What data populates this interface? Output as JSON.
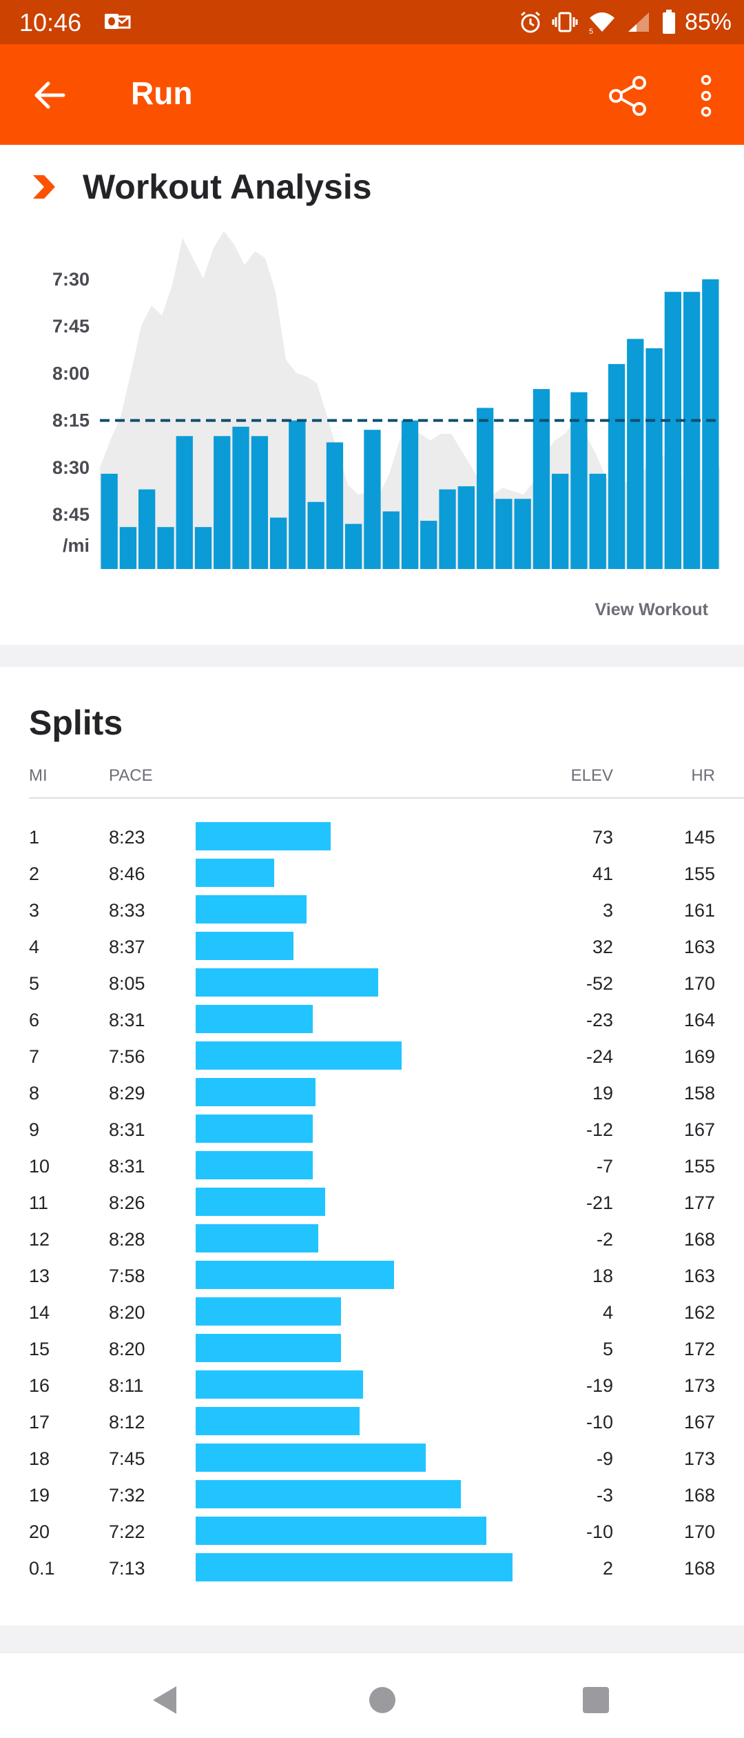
{
  "status_bar": {
    "time": "10:46",
    "battery": "85%",
    "icons": [
      "outlook-notification-icon",
      "alarm-icon",
      "vibrate-icon",
      "wifi-icon",
      "cell-signal-icon",
      "battery-icon"
    ]
  },
  "app_bar": {
    "title": "Run",
    "icons": [
      "back-arrow-icon",
      "share-icon",
      "more-vert-icon"
    ]
  },
  "workout_analysis": {
    "title": "Workout Analysis",
    "view_workout_label": "View Workout",
    "colors": {
      "bar": "#0b9bd6",
      "bar_dark": "#0a8bc4",
      "elevation": "#ececec",
      "average_line": "#0c4f70",
      "brand": "#fc5200"
    },
    "chart_data": {
      "type": "bar",
      "y_tick_labels": [
        "7:30",
        "7:45",
        "8:00",
        "8:15",
        "8:30",
        "8:45"
      ],
      "y_unit_label": "/mi",
      "y_ticks_seconds": [
        450,
        465,
        480,
        495,
        510,
        525
      ],
      "ylim_seconds": [
        440,
        540
      ],
      "y_inverted": true,
      "average_pace_seconds": 495,
      "series": [
        {
          "values": [
            512,
            529,
            517,
            529,
            500,
            529,
            500,
            497,
            500,
            526,
            495,
            521,
            502,
            528,
            498,
            524,
            495,
            527,
            517,
            516,
            491,
            520,
            520,
            485,
            512,
            486,
            512,
            477,
            469,
            472,
            454,
            454,
            450
          ]
        }
      ],
      "elevation_profile_relative": [
        0.3,
        0.38,
        0.45,
        0.58,
        0.72,
        0.78,
        0.75,
        0.84,
        0.98,
        0.92,
        0.86,
        0.95,
        1.0,
        0.96,
        0.9,
        0.94,
        0.92,
        0.82,
        0.62,
        0.58,
        0.57,
        0.55,
        0.45,
        0.35,
        0.25,
        0.22,
        0.23,
        0.22,
        0.28,
        0.38,
        0.42,
        0.4,
        0.38,
        0.4,
        0.4,
        0.35,
        0.3,
        0.25,
        0.22,
        0.24,
        0.23,
        0.22,
        0.26,
        0.34,
        0.38,
        0.4,
        0.44,
        0.4,
        0.34,
        0.27,
        0.24,
        0.26,
        0.28,
        0.3,
        0.32,
        0.35,
        0.28,
        0.24,
        0.26,
        0.28,
        0.3
      ]
    }
  },
  "splits": {
    "title": "Splits",
    "headers": {
      "mi": "MI",
      "pace": "PACE",
      "elev": "ELEV",
      "hr": "HR"
    },
    "bar_color": "#22c4ff",
    "rows": [
      {
        "mi": "1",
        "pace": "8:23",
        "elev": "73",
        "hr": "145",
        "bar_fraction": 0.427
      },
      {
        "mi": "2",
        "pace": "8:46",
        "elev": "41",
        "hr": "155",
        "bar_fraction": 0.248
      },
      {
        "mi": "3",
        "pace": "8:33",
        "elev": "3",
        "hr": "161",
        "bar_fraction": 0.35
      },
      {
        "mi": "4",
        "pace": "8:37",
        "elev": "32",
        "hr": "163",
        "bar_fraction": 0.308
      },
      {
        "mi": "5",
        "pace": "8:05",
        "elev": "-52",
        "hr": "170",
        "bar_fraction": 0.577
      },
      {
        "mi": "6",
        "pace": "8:31",
        "elev": "-23",
        "hr": "164",
        "bar_fraction": 0.37
      },
      {
        "mi": "7",
        "pace": "7:56",
        "elev": "-24",
        "hr": "169",
        "bar_fraction": 0.65
      },
      {
        "mi": "8",
        "pace": "8:29",
        "elev": "19",
        "hr": "158",
        "bar_fraction": 0.378
      },
      {
        "mi": "9",
        "pace": "8:31",
        "elev": "-12",
        "hr": "167",
        "bar_fraction": 0.37
      },
      {
        "mi": "10",
        "pace": "8:31",
        "elev": "-7",
        "hr": "155",
        "bar_fraction": 0.37
      },
      {
        "mi": "11",
        "pace": "8:26",
        "elev": "-21",
        "hr": "177",
        "bar_fraction": 0.409
      },
      {
        "mi": "12",
        "pace": "8:28",
        "elev": "-2",
        "hr": "168",
        "bar_fraction": 0.388
      },
      {
        "mi": "13",
        "pace": "7:58",
        "elev": "18",
        "hr": "163",
        "bar_fraction": 0.626
      },
      {
        "mi": "14",
        "pace": "8:20",
        "elev": "4",
        "hr": "162",
        "bar_fraction": 0.458
      },
      {
        "mi": "15",
        "pace": "8:20",
        "elev": "5",
        "hr": "172",
        "bar_fraction": 0.458
      },
      {
        "mi": "16",
        "pace": "8:11",
        "elev": "-19",
        "hr": "173",
        "bar_fraction": 0.528
      },
      {
        "mi": "17",
        "pace": "8:12",
        "elev": "-10",
        "hr": "167",
        "bar_fraction": 0.518
      },
      {
        "mi": "18",
        "pace": "7:45",
        "elev": "-9",
        "hr": "173",
        "bar_fraction": 0.727
      },
      {
        "mi": "19",
        "pace": "7:32",
        "elev": "-3",
        "hr": "168",
        "bar_fraction": 0.838
      },
      {
        "mi": "20",
        "pace": "7:22",
        "elev": "-10",
        "hr": "170",
        "bar_fraction": 0.918
      },
      {
        "mi": "0.1",
        "pace": "7:13",
        "elev": "2",
        "hr": "168",
        "bar_fraction": 1.0
      }
    ]
  },
  "nav_bar": {
    "icons": [
      "nav-back-icon",
      "nav-home-icon",
      "nav-recents-icon"
    ]
  }
}
